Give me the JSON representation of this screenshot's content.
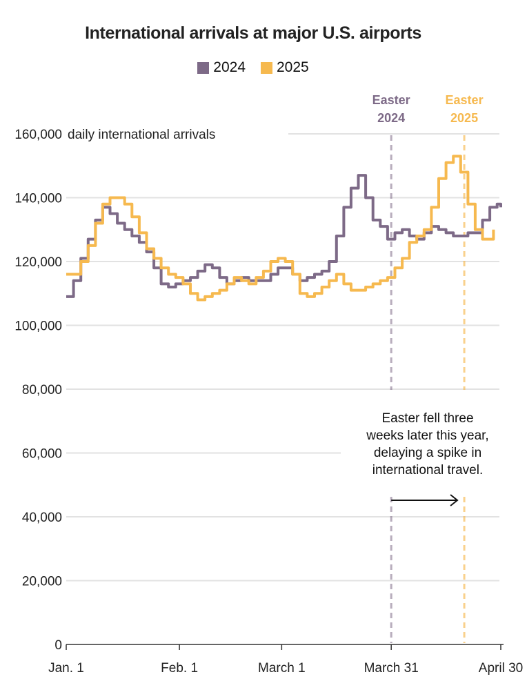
{
  "chart_data": {
    "type": "line",
    "title": "International arrivals at major U.S. airports",
    "ylabel": "daily international arrivals",
    "ylim": [
      0,
      160000
    ],
    "yticks": [
      0,
      20000,
      40000,
      60000,
      80000,
      100000,
      120000,
      140000,
      160000
    ],
    "ytick_labels": [
      "0",
      "20,000",
      "40,000",
      "60,000",
      "80,000",
      "100,000",
      "120,000",
      "140,000",
      "160,000"
    ],
    "xlim": [
      "2025-01-01",
      "2025-04-30"
    ],
    "xticks": [
      {
        "date": "2025-01-01",
        "label": "Jan. 1"
      },
      {
        "date": "2025-02-01",
        "label": "Feb. 1"
      },
      {
        "date": "2025-03-01",
        "label": "March 1"
      },
      {
        "date": "2025-03-31",
        "label": "March 31"
      },
      {
        "date": "2025-04-30",
        "label": "April 30"
      }
    ],
    "legend": {
      "placement": "top-center"
    },
    "series": [
      {
        "name": "2024",
        "color": "#7d6a87",
        "x": [
          "2025-01-01",
          "2025-01-03",
          "2025-01-05",
          "2025-01-07",
          "2025-01-09",
          "2025-01-11",
          "2025-01-13",
          "2025-01-15",
          "2025-01-17",
          "2025-01-19",
          "2025-01-21",
          "2025-01-23",
          "2025-01-25",
          "2025-01-27",
          "2025-01-29",
          "2025-01-31",
          "2025-02-02",
          "2025-02-04",
          "2025-02-06",
          "2025-02-08",
          "2025-02-10",
          "2025-02-12",
          "2025-02-14",
          "2025-02-16",
          "2025-02-18",
          "2025-02-20",
          "2025-02-22",
          "2025-02-24",
          "2025-02-26",
          "2025-02-28",
          "2025-03-02",
          "2025-03-04",
          "2025-03-06",
          "2025-03-08",
          "2025-03-10",
          "2025-03-12",
          "2025-03-14",
          "2025-03-16",
          "2025-03-18",
          "2025-03-20",
          "2025-03-22",
          "2025-03-24",
          "2025-03-26",
          "2025-03-28",
          "2025-03-30",
          "2025-04-01",
          "2025-04-03",
          "2025-04-05",
          "2025-04-07",
          "2025-04-09",
          "2025-04-11",
          "2025-04-13",
          "2025-04-15",
          "2025-04-17",
          "2025-04-19",
          "2025-04-21",
          "2025-04-23",
          "2025-04-25",
          "2025-04-27",
          "2025-04-29",
          "2025-04-30"
        ],
        "values": [
          109000,
          114000,
          121000,
          127000,
          133000,
          137000,
          135000,
          132000,
          130000,
          128000,
          126000,
          123000,
          118000,
          113000,
          112000,
          113000,
          114000,
          115000,
          117000,
          119000,
          118000,
          115000,
          113000,
          114000,
          115000,
          114000,
          114000,
          114000,
          116000,
          118000,
          118000,
          116000,
          114000,
          115000,
          116000,
          117000,
          120000,
          128000,
          137000,
          143000,
          147000,
          140000,
          133000,
          131000,
          127000,
          129000,
          130000,
          128000,
          127000,
          129000,
          131000,
          130000,
          129000,
          128000,
          128000,
          129000,
          129000,
          133000,
          137000,
          138000,
          137000
        ]
      },
      {
        "name": "2025",
        "color": "#f6b94f",
        "x": [
          "2025-01-01",
          "2025-01-03",
          "2025-01-05",
          "2025-01-07",
          "2025-01-09",
          "2025-01-11",
          "2025-01-13",
          "2025-01-15",
          "2025-01-17",
          "2025-01-19",
          "2025-01-21",
          "2025-01-23",
          "2025-01-25",
          "2025-01-27",
          "2025-01-29",
          "2025-01-31",
          "2025-02-02",
          "2025-02-04",
          "2025-02-06",
          "2025-02-08",
          "2025-02-10",
          "2025-02-12",
          "2025-02-14",
          "2025-02-16",
          "2025-02-18",
          "2025-02-20",
          "2025-02-22",
          "2025-02-24",
          "2025-02-26",
          "2025-02-28",
          "2025-03-02",
          "2025-03-04",
          "2025-03-06",
          "2025-03-08",
          "2025-03-10",
          "2025-03-12",
          "2025-03-14",
          "2025-03-16",
          "2025-03-18",
          "2025-03-20",
          "2025-03-22",
          "2025-03-24",
          "2025-03-26",
          "2025-03-28",
          "2025-03-30",
          "2025-04-01",
          "2025-04-03",
          "2025-04-05",
          "2025-04-07",
          "2025-04-09",
          "2025-04-11",
          "2025-04-13",
          "2025-04-15",
          "2025-04-17",
          "2025-04-19",
          "2025-04-21",
          "2025-04-23",
          "2025-04-25",
          "2025-04-27",
          "2025-04-28"
        ],
        "values": [
          116000,
          116000,
          120000,
          125000,
          132000,
          138000,
          140000,
          140000,
          138000,
          134000,
          129000,
          124000,
          121000,
          118000,
          116000,
          115000,
          113000,
          110000,
          108000,
          109000,
          110000,
          111000,
          113000,
          115000,
          114000,
          113000,
          115000,
          117000,
          120000,
          121000,
          120000,
          116000,
          110000,
          109000,
          110000,
          112000,
          114000,
          116000,
          113000,
          111000,
          111000,
          112000,
          113000,
          114000,
          115000,
          118000,
          121000,
          126000,
          128000,
          130000,
          137000,
          146000,
          151000,
          153000,
          148000,
          138000,
          130000,
          127000,
          127000,
          130000
        ]
      }
    ],
    "annotations": {
      "easter_2024": {
        "date": "2025-03-31",
        "label_line1": "Easter",
        "label_line2": "2024",
        "color": "#7d6a87"
      },
      "easter_2025": {
        "date": "2025-04-20",
        "label_line1": "Easter",
        "label_line2": "2025",
        "color": "#f6b94f"
      },
      "note": [
        "Easter fell three",
        "weeks later this year,",
        "delaying a spike in",
        "international travel."
      ]
    }
  }
}
